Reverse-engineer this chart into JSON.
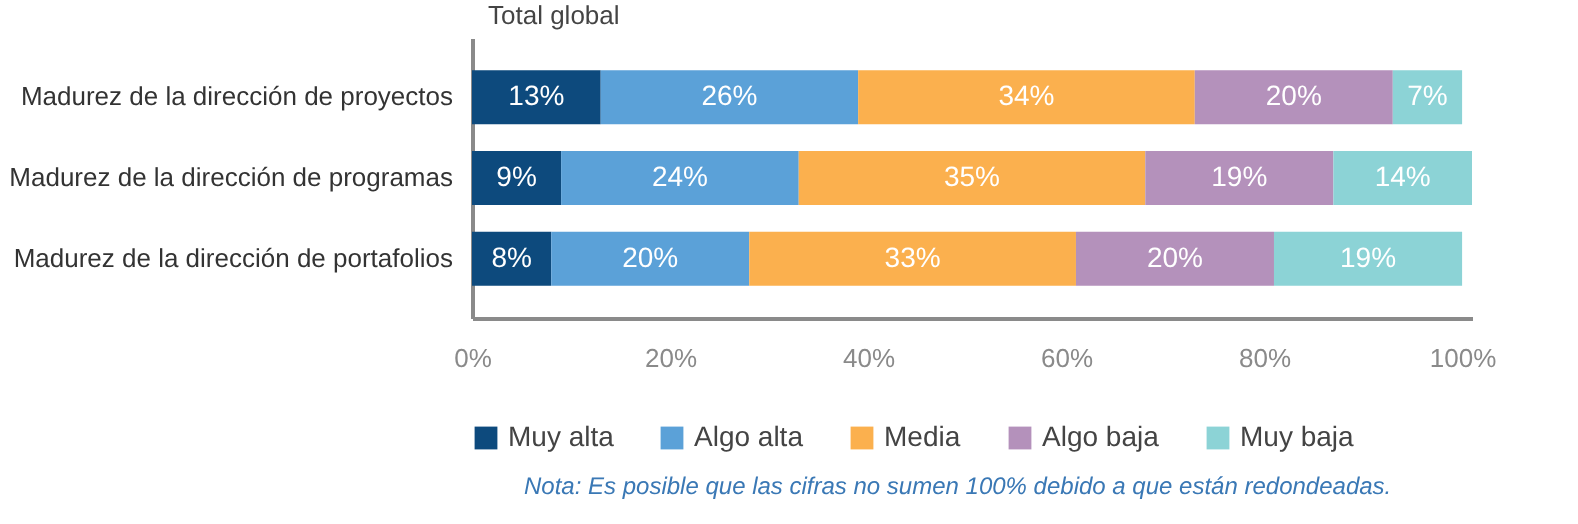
{
  "chart_data": {
    "type": "bar",
    "orientation": "horizontal",
    "stacked": true,
    "title": "Total global",
    "categories": [
      "Madurez de la dirección de proyectos",
      "Madurez de la dirección de programas",
      "Madurez de la dirección de portafolios"
    ],
    "series": [
      {
        "name": "Muy alta",
        "color": "#0d4a7d",
        "values": [
          13,
          9,
          8
        ],
        "value_labels": [
          "13%",
          "9%",
          "8%"
        ]
      },
      {
        "name": "Algo alta",
        "color": "#5ba1d8",
        "values": [
          26,
          24,
          20
        ],
        "value_labels": [
          "26%",
          "24%",
          "20%"
        ]
      },
      {
        "name": "Media",
        "color": "#fbb04e",
        "values": [
          34,
          35,
          33
        ],
        "value_labels": [
          "34%",
          "35%",
          "33%"
        ]
      },
      {
        "name": "Algo baja",
        "color": "#b491bb",
        "values": [
          20,
          19,
          20
        ],
        "value_labels": [
          "20%",
          "19%",
          "20%"
        ]
      },
      {
        "name": "Muy baja",
        "color": "#8cd3d6",
        "values": [
          7,
          14,
          19
        ],
        "value_labels": [
          "7%",
          "14%",
          "19%"
        ]
      }
    ],
    "xlim": [
      0,
      101
    ],
    "xticks": [
      {
        "value": 0,
        "label": "0%"
      },
      {
        "value": 20,
        "label": "20%"
      },
      {
        "value": 40,
        "label": "40%"
      },
      {
        "value": 60,
        "label": "60%"
      },
      {
        "value": 80,
        "label": "80%"
      },
      {
        "value": 100,
        "label": "100%"
      }
    ],
    "grid": false,
    "legend": "bottom",
    "annotations": [
      "Nota: Es posible que las cifras no sumen 100% debido a que están redondeadas."
    ]
  }
}
